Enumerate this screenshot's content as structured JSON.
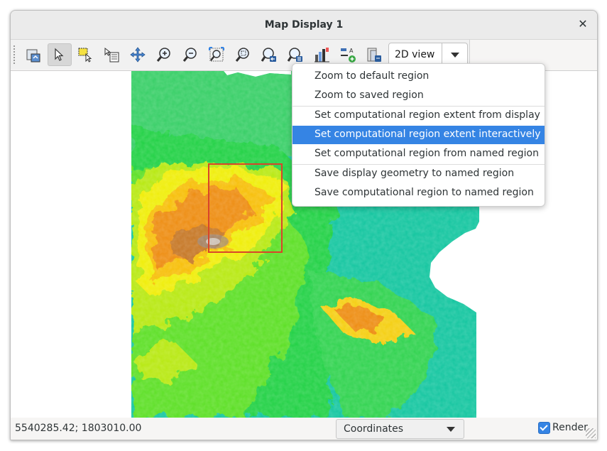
{
  "window": {
    "title": "Map Display 1",
    "close_icon": "close-icon"
  },
  "toolbar": {
    "tools": [
      {
        "name": "display-map-icon",
        "active": false
      },
      {
        "name": "pointer-icon",
        "active": true
      },
      {
        "name": "select-icon",
        "active": false
      },
      {
        "name": "query-icon",
        "active": false
      },
      {
        "name": "pan-icon",
        "active": false
      },
      {
        "name": "zoom-in-icon",
        "active": false
      },
      {
        "name": "zoom-out-icon",
        "active": false
      },
      {
        "name": "zoom-extent-icon",
        "active": false
      },
      {
        "name": "zoom-interactive-icon",
        "active": false
      },
      {
        "name": "zoom-back-icon",
        "active": false
      },
      {
        "name": "zoom-menu-icon",
        "active": false
      },
      {
        "name": "analyze-icon",
        "active": false
      },
      {
        "name": "decoration-icon",
        "active": false
      },
      {
        "name": "save-image-icon",
        "active": false
      }
    ],
    "view_mode": "2D view"
  },
  "menu": {
    "items": [
      "Zoom to default region",
      "Zoom to saved region",
      "Set computational region extent from display",
      "Set computational region extent interactively",
      "Set computational region from named region",
      "Save display geometry to named region",
      "Save computational region to named region"
    ],
    "highlighted_index": 3
  },
  "statusbar": {
    "coordinates": "5540285.42; 1803010.00",
    "display_mode": "Coordinates",
    "render_label": "Render",
    "render_checked": true
  },
  "colors": {
    "accent": "#3584e4",
    "region_box": "#d9442a"
  }
}
